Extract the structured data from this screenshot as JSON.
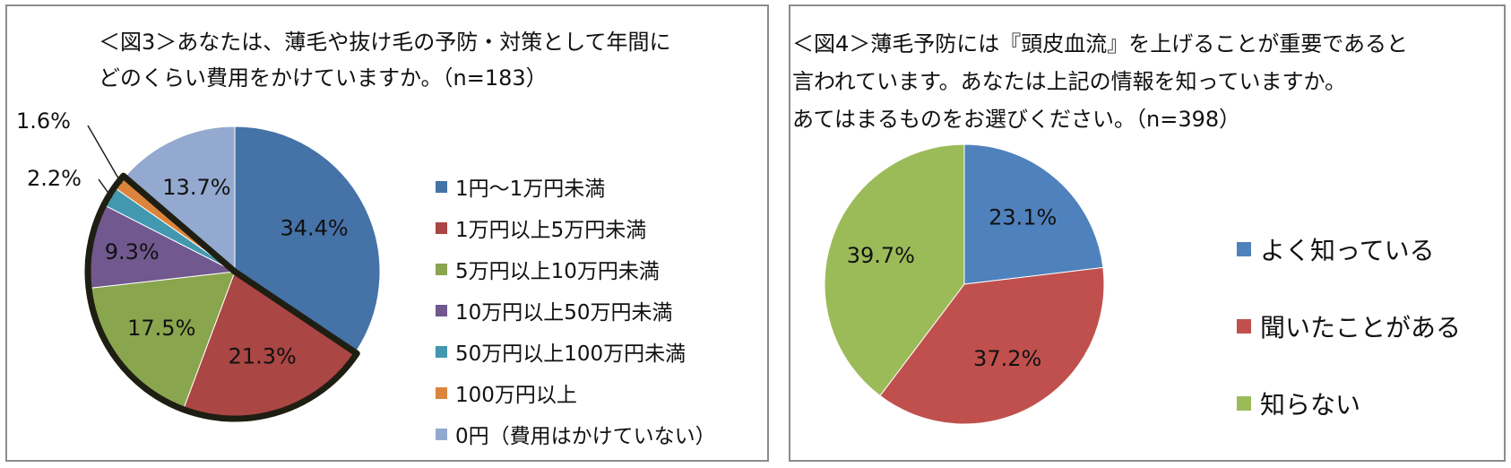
{
  "charts": [
    {
      "title_lines": [
        "＜図3＞あなたは、薄毛や抜け毛の予防・対策として年間に",
        "どのくらい費用をかけていますか。（n=183）"
      ],
      "legend": [
        {
          "label": "1円～1万円未満",
          "color": "#4572a7"
        },
        {
          "label": "1万円以上5万円未満",
          "color": "#aa4643"
        },
        {
          "label": "5万円以上10万円未満",
          "color": "#89a54e"
        },
        {
          "label": "10万円以上50万円未満",
          "color": "#71588f"
        },
        {
          "label": "50万円以上100万円未満",
          "color": "#4198af"
        },
        {
          "label": "100万円以上",
          "color": "#db843d"
        },
        {
          "label": "0円（費用はかけていない）",
          "color": "#93a9cf"
        }
      ]
    },
    {
      "title_lines": [
        "＜図4＞薄毛予防には『頭皮血流』を上げることが重要であると",
        "言われています。あなたは上記の情報を知っていますか。",
        "あてはまるものをお選びください。（n=398）"
      ],
      "legend": [
        {
          "label": "よく知っている",
          "color": "#4f81bd"
        },
        {
          "label": "聞いたことがある",
          "color": "#c0504d"
        },
        {
          "label": "知らない",
          "color": "#9bbb59"
        }
      ]
    }
  ],
  "chart_data": [
    {
      "type": "pie",
      "title": "＜図3＞あなたは、薄毛や抜け毛の予防・対策として年間にどのくらい費用をかけていますか。（n=183）",
      "categories": [
        "1円～1万円未満",
        "1万円以上5万円未満",
        "5万円以上10万円未満",
        "10万円以上50万円未満",
        "50万円以上100万円未満",
        "100万円以上",
        "0円（費用はかけていない）"
      ],
      "values": [
        34.4,
        21.3,
        17.5,
        9.3,
        2.2,
        1.6,
        13.7
      ],
      "labels": [
        "34.4%",
        "21.3%",
        "17.5%",
        "9.3%",
        "2.2%",
        "1.6%",
        "13.7%"
      ],
      "colors": [
        "#4572a7",
        "#aa4643",
        "#89a54e",
        "#71588f",
        "#4198af",
        "#db843d",
        "#93a9cf"
      ],
      "highlighted_slices": [
        "1万円以上5万円未満",
        "5万円以上10万円未満",
        "10万円以上50万円未満",
        "50万円以上100万円未満",
        "100万円以上"
      ],
      "legend_position": "right"
    },
    {
      "type": "pie",
      "title": "＜図4＞薄毛予防には『頭皮血流』を上げることが重要であると言われています。あなたは上記の情報を知っていますか。あてはまるものをお選びください。（n=398）",
      "categories": [
        "よく知っている",
        "聞いたことがある",
        "知らない"
      ],
      "values": [
        23.1,
        37.2,
        39.7
      ],
      "labels": [
        "23.1%",
        "37.2%",
        "39.7%"
      ],
      "colors": [
        "#4f81bd",
        "#c0504d",
        "#9bbb59"
      ],
      "legend_position": "right"
    }
  ]
}
